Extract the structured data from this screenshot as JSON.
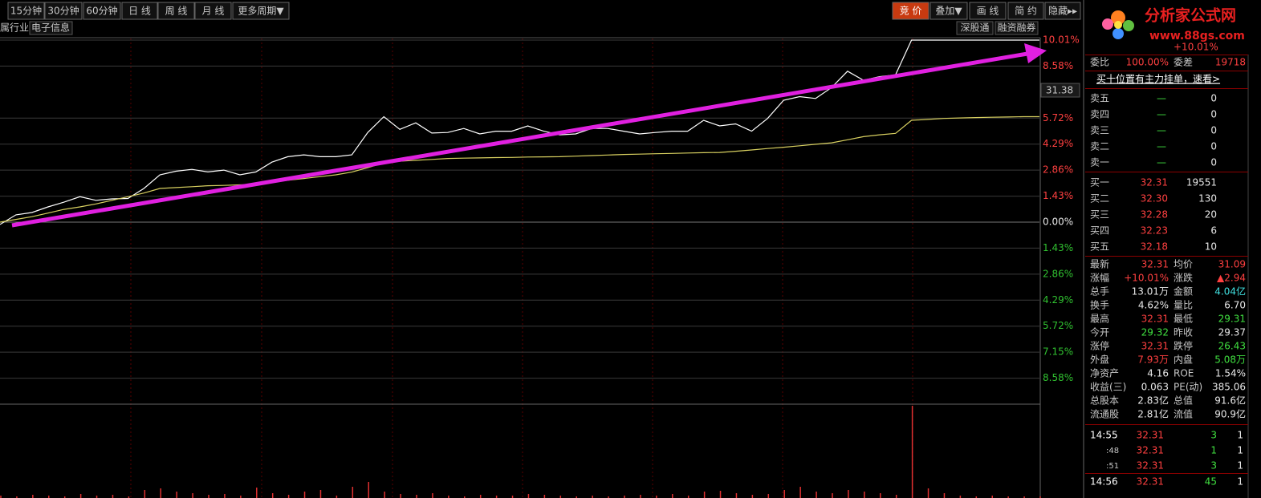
{
  "toolbar": {
    "periods": [
      "15分钟",
      "30分钟",
      "60分钟",
      "日 线",
      "周 线",
      "月 线",
      "更多周期▼"
    ],
    "tools": [
      "竞 价",
      "叠加▼",
      "画 线",
      "简 约",
      "隐藏▸▸"
    ]
  },
  "info_bar": {
    "industry_label": "属行业:",
    "industry": "电子信息",
    "tags": [
      "深股通",
      "融资融券"
    ]
  },
  "chart_data": {
    "type": "line",
    "ylim": [
      -10.01,
      10.01
    ],
    "yticks": [
      {
        "value": 10.01,
        "label": "10.01%"
      },
      {
        "value": 8.58,
        "label": "8.58%"
      },
      {
        "value": 5.72,
        "label": "5.72%"
      },
      {
        "value": 4.29,
        "label": "4.29%"
      },
      {
        "value": 2.86,
        "label": "2.86%"
      },
      {
        "value": 1.43,
        "label": "1.43%"
      },
      {
        "value": 0,
        "label": "0.00%"
      },
      {
        "value": -1.43,
        "label": "1.43%"
      },
      {
        "value": -2.86,
        "label": "2.86%"
      },
      {
        "value": -4.29,
        "label": "4.29%"
      },
      {
        "value": -5.72,
        "label": "5.72%"
      },
      {
        "value": -7.15,
        "label": "7.15%"
      },
      {
        "value": -8.58,
        "label": "8.58%"
      }
    ],
    "cursor_label": "31.38",
    "series": [
      {
        "color": "#ffffff",
        "values": [
          -0.13,
          0.4,
          0.53,
          0.84,
          1.1,
          1.4,
          1.2,
          1.28,
          1.3,
          1.85,
          2.6,
          2.8,
          2.9,
          2.76,
          2.86,
          2.6,
          2.76,
          3.3,
          3.6,
          3.7,
          3.6,
          3.6,
          3.7,
          4.93,
          5.8,
          5.1,
          5.46,
          4.9,
          4.93,
          5.15,
          4.85,
          5.0,
          5.0,
          5.29,
          5.0,
          4.8,
          4.85,
          5.15,
          5.15,
          5.0,
          4.85,
          4.93,
          5.0,
          5.0,
          5.6,
          5.29,
          5.4,
          5.0,
          5.7,
          6.7,
          6.9,
          6.8,
          7.4,
          8.3,
          7.8,
          8.0,
          8.1,
          10.01,
          10.01,
          10.01,
          10.01,
          10.01,
          10.01,
          10.01,
          10.01,
          10.01
        ]
      },
      {
        "color": "#d8d060",
        "values": [
          0,
          0.15,
          0.3,
          0.5,
          0.7,
          0.84,
          1.0,
          1.2,
          1.4,
          1.6,
          1.85,
          1.9,
          1.95,
          2.0,
          2.02,
          2.05,
          2.07,
          2.2,
          2.3,
          2.4,
          2.5,
          2.6,
          2.75,
          3.0,
          3.26,
          3.35,
          3.4,
          3.45,
          3.5,
          3.52,
          3.53,
          3.55,
          3.56,
          3.58,
          3.59,
          3.6,
          3.63,
          3.66,
          3.69,
          3.72,
          3.74,
          3.76,
          3.78,
          3.8,
          3.82,
          3.83,
          3.9,
          3.97,
          4.05,
          4.12,
          4.2,
          4.28,
          4.36,
          4.53,
          4.7,
          4.8,
          4.88,
          5.6,
          5.65,
          5.7,
          5.73,
          5.75,
          5.77,
          5.78,
          5.8,
          5.8
        ]
      }
    ],
    "volume": {
      "color": "#e03030",
      "ylim": [
        0,
        116
      ],
      "values": [
        3,
        2,
        4,
        3,
        2,
        5,
        3,
        4,
        2,
        10,
        12,
        8,
        6,
        4,
        5,
        3,
        13,
        6,
        4,
        8,
        10,
        3,
        14,
        20,
        8,
        5,
        4,
        6,
        3,
        2,
        4,
        3,
        3,
        5,
        4,
        3,
        2,
        3,
        2,
        3,
        4,
        3,
        5,
        3,
        8,
        9,
        6,
        4,
        5,
        10,
        14,
        8,
        6,
        10,
        8,
        6,
        4,
        115,
        12,
        6,
        3,
        2,
        3,
        2,
        2,
        2
      ]
    }
  },
  "quote_panel": {
    "logo": {
      "name": "分析家公式网",
      "url": "www.88gs.com"
    },
    "change_pct": "+10.01%",
    "ratio": {
      "label": "委比",
      "value": "100.00%",
      "diff_label": "委差",
      "diff": "19718"
    },
    "notice": "买十位置有主力挂单，速看>",
    "asks": [
      {
        "label": "卖五",
        "price": "—",
        "volume": "0"
      },
      {
        "label": "卖四",
        "price": "—",
        "volume": "0"
      },
      {
        "label": "卖三",
        "price": "—",
        "volume": "0"
      },
      {
        "label": "卖二",
        "price": "—",
        "volume": "0"
      },
      {
        "label": "卖一",
        "price": "—",
        "volume": "0"
      }
    ],
    "bids": [
      {
        "label": "买一",
        "price": "32.31",
        "volume": "19551"
      },
      {
        "label": "买二",
        "price": "32.30",
        "volume": "130"
      },
      {
        "label": "买三",
        "price": "32.28",
        "volume": "20"
      },
      {
        "label": "买四",
        "price": "32.23",
        "volume": "6"
      },
      {
        "label": "买五",
        "price": "32.18",
        "volume": "10"
      }
    ],
    "stats": [
      {
        "l1": "最新",
        "v1": "32.31",
        "c1": "red",
        "l2": "均价",
        "v2": "31.09",
        "c2": "red"
      },
      {
        "l1": "涨幅",
        "v1": "+10.01%",
        "c1": "red",
        "l2": "涨跌",
        "v2": "▲2.94",
        "c2": "red"
      },
      {
        "l1": "总手",
        "v1": "13.01万",
        "c1": "white",
        "l2": "金额",
        "v2": "4.04亿",
        "c2": "cyan"
      },
      {
        "l1": "换手",
        "v1": "4.62%",
        "c1": "white",
        "l2": "量比",
        "v2": "6.70",
        "c2": "white"
      },
      {
        "l1": "最高",
        "v1": "32.31",
        "c1": "red",
        "l2": "最低",
        "v2": "29.31",
        "c2": "green"
      },
      {
        "l1": "今开",
        "v1": "29.32",
        "c1": "green",
        "l2": "昨收",
        "v2": "29.37",
        "c2": "white"
      },
      {
        "l1": "涨停",
        "v1": "32.31",
        "c1": "red",
        "l2": "跌停",
        "v2": "26.43",
        "c2": "green"
      },
      {
        "l1": "外盘",
        "v1": "7.93万",
        "c1": "red",
        "l2": "内盘",
        "v2": "5.08万",
        "c2": "green"
      },
      {
        "l1": "净资产",
        "v1": "4.16",
        "c1": "white",
        "l2": "ROE",
        "v2": "1.54%",
        "c2": "white"
      },
      {
        "l1": "收益(三)",
        "v1": "0.063",
        "c1": "white",
        "l2": "PE(动)",
        "v2": "385.06",
        "c2": "white"
      },
      {
        "l1": "总股本",
        "v1": "2.83亿",
        "c1": "white",
        "l2": "总值",
        "v2": "91.6亿",
        "c2": "white"
      },
      {
        "l1": "流通股",
        "v1": "2.81亿",
        "c1": "white",
        "l2": "流值",
        "v2": "90.9亿",
        "c2": "white"
      }
    ],
    "trades": [
      {
        "time": "14:55",
        "price": "32.31",
        "volume": "3",
        "count": "1"
      },
      {
        "time": ":48",
        "price": "32.31",
        "volume": "1",
        "count": "1"
      },
      {
        "time": ":51",
        "price": "32.31",
        "volume": "3",
        "count": "1"
      },
      {
        "time": "14:56",
        "price": "32.31",
        "volume": "45",
        "count": "1"
      }
    ]
  }
}
